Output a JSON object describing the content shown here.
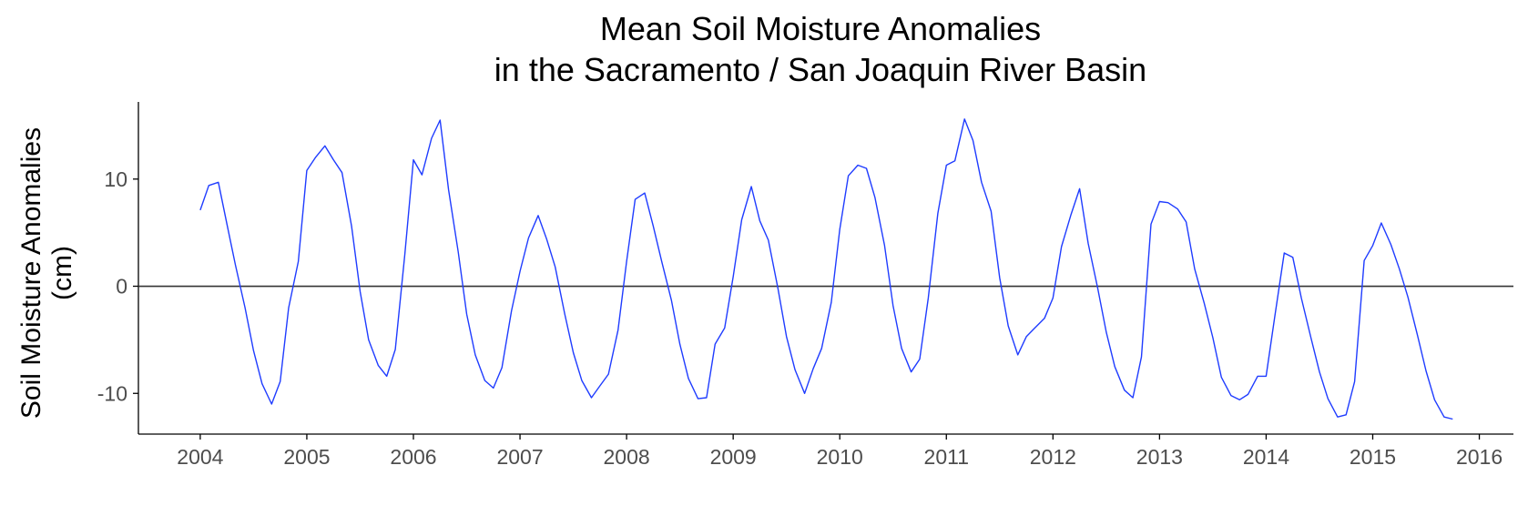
{
  "chart_data": {
    "type": "line",
    "title": "Mean Soil Moisture Anomalies",
    "subtitle": "in the Sacramento / San Joaquin River Basin",
    "ylabel": "Soil Moisture Anomalies",
    "ylabel_units": "(cm)",
    "xlabel": "",
    "xlim": [
      2003.42,
      2016.32
    ],
    "ylim": [
      -13.8,
      17.2
    ],
    "x_ticks": [
      2004,
      2005,
      2006,
      2007,
      2008,
      2009,
      2010,
      2011,
      2012,
      2013,
      2014,
      2015,
      2016
    ],
    "x_tick_labels": [
      "2004",
      "2005",
      "2006",
      "2007",
      "2008",
      "2009",
      "2010",
      "2011",
      "2012",
      "2013",
      "2014",
      "2015",
      "2016"
    ],
    "y_ticks": [
      -10,
      0,
      10
    ],
    "y_tick_labels": [
      "-10",
      "0",
      "10"
    ],
    "reference_line_y": 0,
    "grid": false,
    "colors": {
      "series": "#1f3cff",
      "reference": "#333333",
      "axis": "#000000"
    },
    "series": [
      {
        "x": [
          2004.0,
          2004.08,
          2004.17,
          2004.25,
          2004.33,
          2004.42,
          2004.5,
          2004.58,
          2004.67,
          2004.75,
          2004.83,
          2004.92,
          2005.0,
          2005.08,
          2005.17,
          2005.25,
          2005.33,
          2005.42,
          2005.5,
          2005.58,
          2005.67,
          2005.75,
          2005.83,
          2005.92,
          2006.0,
          2006.08,
          2006.17,
          2006.25,
          2006.33,
          2006.42,
          2006.5,
          2006.58,
          2006.67,
          2006.75,
          2006.83,
          2006.92,
          2007.0,
          2007.08,
          2007.17,
          2007.25,
          2007.33,
          2007.42,
          2007.5,
          2007.58,
          2007.67,
          2007.75,
          2007.83,
          2007.92,
          2008.0,
          2008.08,
          2008.17,
          2008.25,
          2008.33,
          2008.42,
          2008.5,
          2008.58,
          2008.67,
          2008.75,
          2008.83,
          2008.92,
          2009.0,
          2009.08,
          2009.17,
          2009.25,
          2009.33,
          2009.42,
          2009.5,
          2009.58,
          2009.67,
          2009.75,
          2009.83,
          2009.92,
          2010.0,
          2010.08,
          2010.17,
          2010.25,
          2010.33,
          2010.42,
          2010.5,
          2010.58,
          2010.67,
          2010.75,
          2010.83,
          2010.92,
          2011.0,
          2011.08,
          2011.17,
          2011.25,
          2011.33,
          2011.42,
          2011.5,
          2011.58,
          2011.67,
          2011.75,
          2011.83,
          2011.92,
          2012.0,
          2012.08,
          2012.17,
          2012.25,
          2012.33,
          2012.42,
          2012.5,
          2012.58,
          2012.67,
          2012.75,
          2012.83,
          2012.92,
          2013.0,
          2013.08,
          2013.17,
          2013.25,
          2013.33,
          2013.42,
          2013.5,
          2013.58,
          2013.67,
          2013.75,
          2013.83,
          2013.92,
          2014.0,
          2014.08,
          2014.17,
          2014.25,
          2014.33,
          2014.42,
          2014.5,
          2014.58,
          2014.67,
          2014.75,
          2014.83,
          2014.92,
          2015.0,
          2015.08,
          2015.17,
          2015.25,
          2015.33,
          2015.42,
          2015.5,
          2015.58,
          2015.67,
          2015.75
        ],
        "y": [
          7.1,
          9.4,
          9.7,
          5.8,
          2.0,
          -2.0,
          -6.0,
          -9.1,
          -11.0,
          -8.9,
          -2.0,
          2.3,
          10.8,
          12.0,
          13.1,
          11.8,
          10.6,
          5.6,
          -0.5,
          -5.0,
          -7.4,
          -8.4,
          -5.9,
          3.0,
          11.8,
          10.4,
          13.8,
          15.5,
          9.0,
          3.2,
          -2.6,
          -6.4,
          -8.8,
          -9.5,
          -7.6,
          -2.3,
          1.4,
          4.5,
          6.6,
          4.4,
          1.8,
          -2.6,
          -6.2,
          -8.8,
          -10.4,
          -9.3,
          -8.2,
          -4.1,
          2.3,
          8.1,
          8.7,
          5.6,
          2.3,
          -1.3,
          -5.4,
          -8.6,
          -10.5,
          -10.4,
          -5.4,
          -3.9,
          0.9,
          6.2,
          9.3,
          6.1,
          4.3,
          -0.2,
          -4.7,
          -7.8,
          -10.0,
          -7.7,
          -5.8,
          -1.5,
          5.3,
          10.3,
          11.3,
          11.0,
          8.3,
          3.8,
          -1.8,
          -5.8,
          -8.0,
          -6.8,
          -1.1,
          6.8,
          11.3,
          11.7,
          15.6,
          13.6,
          9.7,
          7.0,
          0.8,
          -3.7,
          -6.4,
          -4.7,
          -3.9,
          -3.0,
          -1.1,
          3.7,
          6.7,
          9.1,
          4.0,
          -0.2,
          -4.3,
          -7.5,
          -9.7,
          -10.4,
          -6.6,
          5.8,
          7.9,
          7.8,
          7.2,
          6.0,
          1.6,
          -1.6,
          -4.8,
          -8.5,
          -10.2,
          -10.6,
          -10.1,
          -8.4,
          -8.4,
          -2.9,
          3.1,
          2.7,
          -1.1,
          -4.8,
          -8.0,
          -10.5,
          -12.2,
          -12.0,
          -8.9,
          2.4,
          3.8,
          5.9,
          3.9,
          1.6,
          -1.0,
          -4.6,
          -7.9,
          -10.6,
          -12.2,
          -12.4
        ]
      }
    ]
  }
}
